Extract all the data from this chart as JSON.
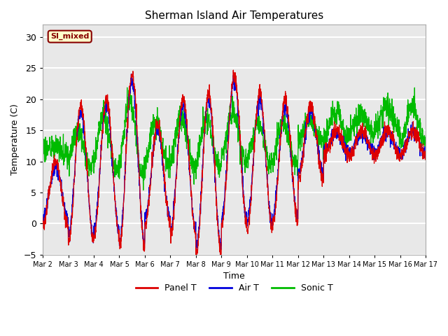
{
  "title": "Sherman Island Air Temperatures",
  "xlabel": "Time",
  "ylabel": "Temperature (C)",
  "ylim": [
    -5,
    32
  ],
  "yticks": [
    -5,
    0,
    5,
    10,
    15,
    20,
    25,
    30
  ],
  "bg_color": "#e8e8e8",
  "grid_color": "#ffffff",
  "panel_color": "#dd0000",
  "air_color": "#0000dd",
  "sonic_color": "#00bb00",
  "annotation_text": "SI_mixed",
  "annotation_color": "#880000",
  "annotation_bg": "#ffffcc",
  "x_tick_labels": [
    "Mar 2",
    "Mar 3",
    "Mar 4",
    "Mar 5",
    "Mar 6",
    "Mar 7",
    "Mar 8",
    "Mar 9",
    "Mar 10",
    "Mar 11",
    "Mar 12",
    "Mar 13",
    "Mar 14",
    "Mar 15",
    "Mar 16",
    "Mar 17"
  ],
  "n_days": 15,
  "pts_per_day": 144
}
